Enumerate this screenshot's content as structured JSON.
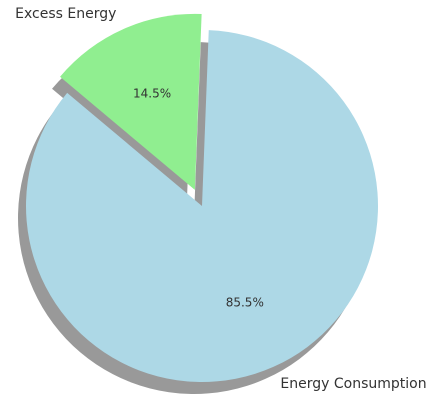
{
  "chart_data": {
    "type": "pie",
    "slices": [
      {
        "label": "Energy Consumption",
        "value": 85.5,
        "pct_label": "85.5%",
        "color": "#add8e6",
        "exploded": false
      },
      {
        "label": "Excess Energy",
        "value": 14.5,
        "pct_label": "14.5%",
        "color": "#90ee90",
        "exploded": true
      }
    ],
    "shadow": true,
    "shadow_color": "#999999",
    "legend": "none",
    "title": ""
  }
}
